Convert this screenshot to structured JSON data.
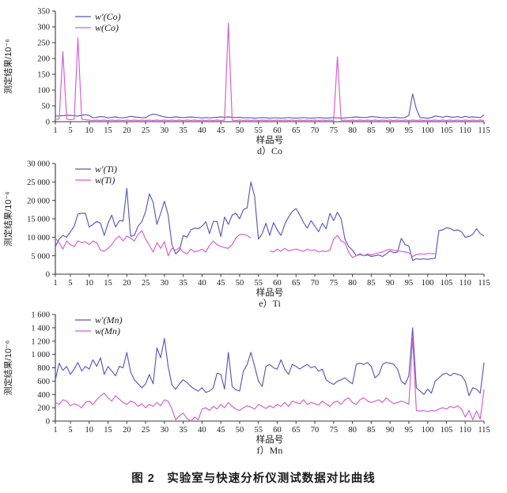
{
  "figure": {
    "caption": "图 2　实验室与快速分析仪测试数据对比曲线"
  },
  "colors": {
    "series1": "#5a58b8",
    "series2": "#d45cd0",
    "axis": "#3a3a3a",
    "text": "#1c1c1c"
  },
  "chart_data": [
    {
      "type": "line",
      "id": "co",
      "sublabel": "d）Co",
      "xlabel": "样品号",
      "ylabel": "测定结果/10⁻⁶",
      "xlim": [
        1,
        115
      ],
      "x_tick_step": 5,
      "x_ticks": [
        1,
        5,
        10,
        15,
        20,
        25,
        30,
        35,
        40,
        45,
        50,
        55,
        60,
        65,
        70,
        75,
        80,
        85,
        90,
        95,
        100,
        105,
        110,
        115
      ],
      "ylim": [
        0,
        350
      ],
      "y_ticks": [
        0,
        50,
        100,
        150,
        200,
        250,
        300,
        350
      ],
      "y_tick_labels": [
        "0",
        "50",
        "100",
        "150",
        "200",
        "250",
        "300",
        "350"
      ],
      "legend": [
        "w′(Co)",
        "w(Co)"
      ],
      "grid": false,
      "legend_position": "upper-left-inside",
      "series": [
        {
          "name": "w′(Co)",
          "color_key": "series1",
          "values": [
            18,
            18,
            19,
            20,
            20,
            19,
            18,
            20,
            22,
            20,
            12,
            14,
            16,
            15,
            12,
            14,
            15,
            13,
            12,
            14,
            17,
            15,
            14,
            13,
            12,
            20,
            24,
            22,
            18,
            15,
            13,
            14,
            15,
            14,
            13,
            14,
            15,
            14,
            13,
            12,
            13,
            12,
            13,
            14,
            15,
            14,
            15,
            14,
            13,
            14,
            12,
            13,
            12,
            11,
            12,
            13,
            12,
            11,
            12,
            12,
            11,
            12,
            13,
            12,
            11,
            12,
            13,
            12,
            11,
            12,
            13,
            12,
            11,
            12,
            13,
            12,
            11,
            12,
            13,
            14,
            15,
            14,
            13,
            14,
            16,
            15,
            14,
            13,
            12,
            13,
            14,
            13,
            12,
            13,
            20,
            88,
            40,
            13,
            12,
            11,
            13,
            18,
            16,
            14,
            17,
            15,
            14,
            16,
            13,
            17,
            14,
            15,
            14,
            13,
            22
          ]
        },
        {
          "name": "w(Co)",
          "color_key": "series2",
          "values": [
            8,
            8,
            222,
            8,
            6,
            8,
            265,
            8,
            6,
            5,
            4,
            5,
            4,
            5,
            4,
            5,
            4,
            5,
            4,
            5,
            4,
            5,
            4,
            5,
            4,
            5,
            4,
            5,
            4,
            5,
            4,
            5,
            4,
            5,
            4,
            5,
            4,
            5,
            4,
            5,
            4,
            5,
            4,
            5,
            4,
            5,
            312,
            5,
            4,
            5,
            4,
            5,
            4,
            5,
            4,
            5,
            4,
            5,
            4,
            5,
            4,
            5,
            4,
            5,
            4,
            5,
            4,
            5,
            4,
            5,
            4,
            5,
            4,
            5,
            4,
            205,
            4,
            5,
            4,
            5,
            4,
            5,
            4,
            5,
            4,
            5,
            4,
            5,
            4,
            5,
            4,
            5,
            4,
            5,
            4,
            5,
            4,
            5,
            4,
            5,
            4,
            5,
            4,
            5,
            4,
            5,
            4,
            5,
            4,
            5,
            4,
            5,
            4,
            5,
            4
          ]
        }
      ]
    },
    {
      "type": "line",
      "id": "ti",
      "sublabel": "e）Ti",
      "xlabel": "样品号",
      "ylabel": "测定结果/10⁻⁶",
      "xlim": [
        1,
        115
      ],
      "x_tick_step": 5,
      "x_ticks": [
        1,
        5,
        10,
        15,
        20,
        25,
        30,
        35,
        40,
        45,
        50,
        55,
        60,
        65,
        70,
        75,
        80,
        85,
        90,
        95,
        100,
        105,
        110,
        115
      ],
      "ylim": [
        0,
        30000
      ],
      "y_ticks": [
        0,
        5000,
        10000,
        15000,
        20000,
        25000,
        30000
      ],
      "y_tick_labels": [
        "0",
        "5 000",
        "10 000",
        "15 000",
        "20 000",
        "25 000",
        "30 000"
      ],
      "legend": [
        "w′(Ti)",
        "w(Ti)"
      ],
      "grid": false,
      "legend_position": "upper-left-inside",
      "series": [
        {
          "name": "w′(Ti)",
          "color_key": "series1",
          "values": [
            7500,
            9500,
            10500,
            10000,
            11500,
            13000,
            16300,
            16500,
            16500,
            12800,
            13500,
            14300,
            13800,
            10500,
            13800,
            16000,
            12800,
            14500,
            14400,
            23300,
            10300,
            10500,
            13000,
            14300,
            17000,
            21800,
            19500,
            13500,
            16500,
            19800,
            16000,
            8000,
            5500,
            6500,
            10500,
            10000,
            12000,
            12500,
            12300,
            13000,
            14200,
            11000,
            14300,
            14300,
            10200,
            15500,
            13500,
            16000,
            16500,
            15000,
            17500,
            18000,
            25000,
            21000,
            9500,
            11000,
            13800,
            10500,
            14000,
            12000,
            10500,
            13500,
            15500,
            17000,
            17800,
            16000,
            14000,
            12500,
            14500,
            13000,
            11500,
            13800,
            12300,
            16500,
            14500,
            16800,
            15000,
            9500,
            7500,
            6500,
            5000,
            5500,
            5000,
            5200,
            4800,
            5000,
            5200,
            4800,
            5500,
            6300,
            5800,
            6000,
            9700,
            8000,
            7600,
            3700,
            4200,
            4000,
            4200,
            4000,
            4200,
            4300,
            11800,
            12000,
            12600,
            12400,
            11800,
            12000,
            11500,
            10000,
            10200,
            10800,
            12300,
            11000,
            10300
          ]
        },
        {
          "name": "w(Ti)",
          "color_key": "series2",
          "values": [
            9800,
            8500,
            6800,
            9000,
            8000,
            7500,
            9000,
            8600,
            8800,
            8000,
            9000,
            8500,
            6500,
            6200,
            7000,
            8000,
            9500,
            10300,
            9000,
            10300,
            9800,
            9000,
            10800,
            11800,
            9500,
            7800,
            6000,
            8500,
            7000,
            8800,
            5000,
            7000,
            6500,
            7200,
            6000,
            5500,
            6800,
            6000,
            6300,
            6800,
            6000,
            7800,
            9000,
            8000,
            7500,
            7200,
            7000,
            8000,
            9800,
            10800,
            10800,
            10500,
            9800,
            null,
            null,
            null,
            null,
            6300,
            6000,
            6800,
            6200,
            7000,
            6300,
            6600,
            6800,
            6500,
            6200,
            6800,
            6400,
            6600,
            6000,
            6300,
            6100,
            6500,
            9500,
            10500,
            9000,
            8500,
            6000,
            4500,
            5000,
            5300,
            5000,
            5500,
            5200,
            5500,
            5800,
            6000,
            6500,
            6700,
            6500,
            6300,
            6200,
            6000,
            5800,
            4800,
            5300,
            5500,
            5400,
            5600,
            5600,
            5500,
            null,
            null,
            null,
            null,
            null,
            null,
            null,
            null,
            null,
            null,
            null,
            null,
            null
          ]
        }
      ]
    },
    {
      "type": "line",
      "id": "mn",
      "sublabel": "f）Mn",
      "xlabel": "样品号",
      "ylabel": "测定结果/10⁻⁶",
      "xlim": [
        1,
        115
      ],
      "x_tick_step": 5,
      "x_ticks": [
        1,
        5,
        10,
        15,
        20,
        25,
        30,
        35,
        40,
        45,
        50,
        55,
        60,
        65,
        70,
        75,
        80,
        85,
        90,
        95,
        100,
        105,
        110,
        115
      ],
      "ylim": [
        0,
        1600
      ],
      "y_ticks": [
        0,
        200,
        400,
        600,
        800,
        1000,
        1200,
        1400,
        1600
      ],
      "y_tick_labels": [
        "0",
        "200",
        "400",
        "600",
        "800",
        "1 000",
        "1 200",
        "1 400",
        "1 600"
      ],
      "legend": [
        "w′(Mn)",
        "w(Mn)"
      ],
      "grid": false,
      "legend_position": "upper-left-inside",
      "series": [
        {
          "name": "w′(Mn)",
          "color_key": "series1",
          "values": [
            620,
            870,
            760,
            820,
            700,
            780,
            880,
            750,
            820,
            780,
            920,
            820,
            950,
            700,
            820,
            750,
            680,
            820,
            800,
            1030,
            740,
            620,
            560,
            500,
            560,
            700,
            560,
            1100,
            950,
            1240,
            820,
            540,
            480,
            560,
            620,
            580,
            520,
            480,
            450,
            500,
            430,
            450,
            500,
            720,
            700,
            480,
            1030,
            520,
            470,
            450,
            750,
            850,
            1030,
            820,
            600,
            520,
            820,
            850,
            800,
            780,
            920,
            780,
            700,
            850,
            820,
            780,
            820,
            850,
            800,
            820,
            750,
            780,
            620,
            580,
            550,
            600,
            620,
            650,
            600,
            560,
            850,
            870,
            850,
            880,
            820,
            650,
            700,
            850,
            880,
            870,
            850,
            780,
            600,
            550,
            680,
            1400,
            500,
            450,
            400,
            480,
            420,
            600,
            650,
            700,
            720,
            680,
            720,
            700,
            680,
            600,
            380,
            500,
            480,
            420,
            880
          ]
        },
        {
          "name": "w(Mn)",
          "color_key": "series2",
          "values": [
            280,
            250,
            320,
            300,
            230,
            260,
            240,
            200,
            280,
            300,
            250,
            320,
            380,
            420,
            350,
            300,
            380,
            330,
            280,
            250,
            300,
            280,
            220,
            260,
            200,
            250,
            220,
            280,
            230,
            320,
            300,
            180,
            20,
            80,
            120,
            40,
            0,
            60,
            20,
            180,
            200,
            160,
            220,
            180,
            250,
            200,
            280,
            220,
            180,
            160,
            200,
            230,
            210,
            180,
            250,
            220,
            190,
            230,
            200,
            250,
            220,
            280,
            220,
            300,
            280,
            260,
            320,
            250,
            280,
            260,
            240,
            300,
            260,
            220,
            280,
            300,
            250,
            320,
            350,
            280,
            250,
            320,
            350,
            300,
            280,
            300,
            320,
            280,
            350,
            300,
            260,
            280,
            300,
            280,
            250,
            1250,
            160,
            150,
            160,
            140,
            160,
            150,
            180,
            200,
            180,
            220,
            200,
            230,
            180,
            60,
            160,
            20,
            150,
            30,
            480
          ]
        }
      ]
    }
  ]
}
